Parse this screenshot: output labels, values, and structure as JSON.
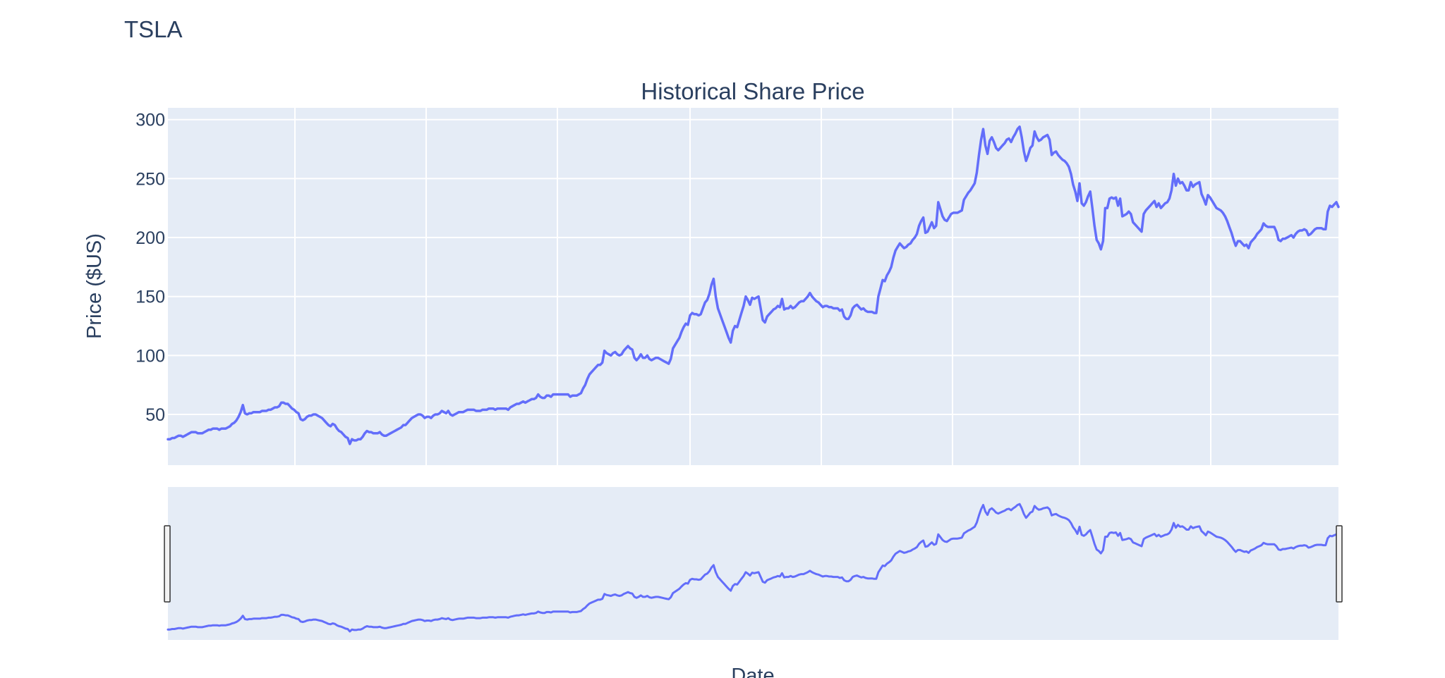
{
  "page": {
    "title": "TSLA"
  },
  "colors": {
    "line": "#636efa",
    "plot_background": "#e5ecf6",
    "grid": "#ffffff",
    "text": "#2a3f5f"
  },
  "chart_data": {
    "type": "line",
    "title": "Historical Share Price",
    "xlabel": "Date",
    "ylabel": "Price ($US)",
    "ylim": [
      7,
      310
    ],
    "yticks": [
      50,
      100,
      150,
      200,
      250,
      300
    ],
    "grid": true,
    "range_slider": true,
    "x_ticks_visible": false,
    "series": [
      {
        "values": [
          29,
          29,
          30,
          30,
          31,
          32,
          32,
          31,
          32,
          33,
          34,
          35,
          35,
          35,
          34,
          34,
          34,
          35,
          36,
          37,
          37,
          38,
          38,
          38,
          37,
          38,
          38,
          38,
          39,
          40,
          42,
          43,
          45,
          48,
          52,
          58,
          51,
          50,
          51,
          51,
          52,
          52,
          52,
          52,
          53,
          53,
          53,
          54,
          54,
          55,
          56,
          56,
          57,
          60,
          60,
          59,
          59,
          57,
          55,
          54,
          52,
          51,
          46,
          45,
          46,
          48,
          49,
          49,
          50,
          50,
          49,
          48,
          47,
          45,
          43,
          41,
          40,
          42,
          41,
          38,
          36,
          35,
          33,
          31,
          30,
          25,
          29,
          28,
          28,
          29,
          29,
          31,
          34,
          36,
          35,
          35,
          34,
          34,
          34,
          35,
          33,
          32,
          32,
          33,
          34,
          35,
          36,
          37,
          38,
          39,
          41,
          41,
          43,
          45,
          47,
          48,
          49,
          50,
          50,
          49,
          47,
          48,
          48,
          47,
          49,
          50,
          50,
          51,
          53,
          52,
          51,
          53,
          50,
          49,
          50,
          51,
          52,
          52,
          52,
          53,
          54,
          54,
          54,
          54,
          53,
          53,
          53,
          54,
          54,
          54,
          55,
          55,
          55,
          54,
          55,
          55,
          55,
          55,
          55,
          54,
          56,
          57,
          58,
          59,
          59,
          60,
          61,
          60,
          61,
          62,
          63,
          63,
          64,
          67,
          65,
          64,
          64,
          66,
          66,
          65,
          67,
          67,
          67,
          67,
          67,
          67,
          67,
          67,
          65,
          66,
          66,
          66,
          67,
          68,
          72,
          75,
          80,
          84,
          86,
          88,
          90,
          92,
          92,
          94,
          104,
          102,
          101,
          100,
          102,
          103,
          101,
          100,
          101,
          104,
          106,
          108,
          106,
          105,
          98,
          96,
          98,
          101,
          98,
          98,
          100,
          97,
          96,
          97,
          98,
          98,
          97,
          96,
          95,
          94,
          93,
          97,
          106,
          109,
          112,
          115,
          120,
          124,
          127,
          126,
          134,
          136,
          135,
          135,
          134,
          135,
          140,
          145,
          147,
          152,
          160,
          165,
          150,
          140,
          135,
          130,
          125,
          120,
          115,
          111,
          121,
          125,
          124,
          130,
          136,
          142,
          150,
          147,
          143,
          149,
          148,
          149,
          150,
          140,
          130,
          128,
          133,
          135,
          137,
          139,
          140,
          142,
          141,
          148,
          139,
          140,
          140,
          142,
          140,
          141,
          143,
          145,
          146,
          146,
          148,
          150,
          153,
          150,
          148,
          146,
          145,
          143,
          141,
          142,
          142,
          141,
          141,
          140,
          140,
          140,
          138,
          139,
          133,
          131,
          131,
          134,
          140,
          142,
          143,
          141,
          139,
          140,
          138,
          137,
          137,
          137,
          136,
          136,
          150,
          157,
          164,
          163,
          168,
          171,
          175,
          183,
          189,
          192,
          195,
          193,
          191,
          192,
          194,
          195,
          198,
          200,
          203,
          210,
          214,
          217,
          204,
          205,
          209,
          213,
          208,
          210,
          230,
          224,
          218,
          215,
          214,
          217,
          220,
          221,
          221,
          221,
          222,
          223,
          232,
          235,
          238,
          240,
          243,
          246,
          255,
          270,
          283,
          292,
          278,
          271,
          282,
          285,
          281,
          276,
          274,
          276,
          278,
          280,
          283,
          284,
          281,
          285,
          288,
          292,
          294,
          285,
          273,
          265,
          270,
          276,
          278,
          290,
          285,
          282,
          283,
          285,
          286,
          287,
          283,
          270,
          272,
          273,
          270,
          268,
          266,
          265,
          263,
          260,
          254,
          245,
          239,
          231,
          246,
          229,
          227,
          230,
          235,
          239,
          225,
          210,
          198,
          195,
          190,
          197,
          225,
          225,
          233,
          234,
          233,
          234,
          227,
          233,
          218,
          219,
          220,
          222,
          220,
          213,
          211,
          209,
          207,
          205,
          220,
          223,
          225,
          227,
          229,
          231,
          226,
          229,
          225,
          227,
          229,
          230,
          233,
          240,
          254,
          244,
          250,
          246,
          247,
          244,
          240,
          240,
          247,
          243,
          245,
          246,
          247,
          237,
          233,
          228,
          236,
          234,
          231,
          228,
          225,
          224,
          223,
          221,
          218,
          214,
          209,
          204,
          198,
          193,
          197,
          197,
          195,
          193,
          194,
          191,
          196,
          198,
          200,
          203,
          205,
          207,
          212,
          210,
          209,
          209,
          209,
          209,
          205,
          198,
          197,
          199,
          199,
          200,
          201,
          202,
          200,
          203,
          205,
          206,
          206,
          207,
          206,
          202,
          203,
          205,
          207,
          208,
          208,
          208,
          207,
          207,
          222,
          227,
          226,
          228,
          230,
          226
        ]
      }
    ]
  }
}
